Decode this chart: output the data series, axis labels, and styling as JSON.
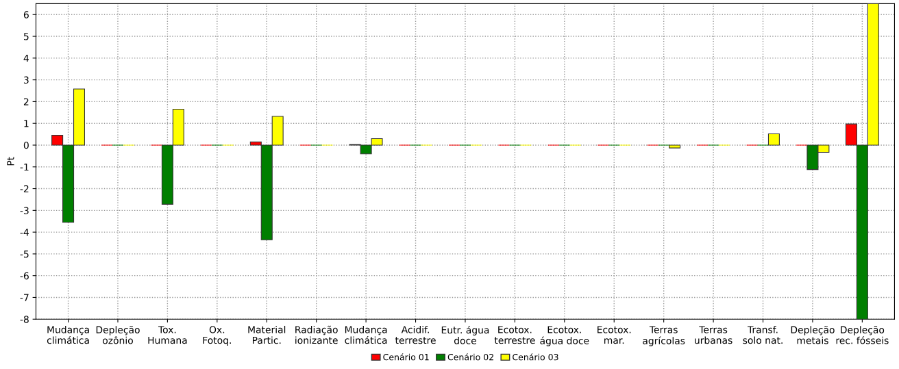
{
  "chart_data": {
    "type": "bar",
    "ylabel": "Pt",
    "categories": [
      "Mudança\nclimática",
      "Depleção\nozônio",
      "Tox.\nHumana",
      "Ox.\nFotoq.",
      "Material\nPartic.",
      "Radiação\nionizante",
      "Mudança\nclimática",
      "Acidif.\nterrestre",
      "Eutr. água\ndoce",
      "Ecotox.\nterrestre",
      "Ecotox.\nágua doce",
      "Ecotox.\nmar.",
      "Terras\nagrícolas",
      "Terras\nurbanas",
      "Transf.\nsolo nat.",
      "Depleção\nmetais",
      "Depleção\nrec. fósseis"
    ],
    "series": [
      {
        "name": "Cenário 01",
        "color": "#ff0000",
        "values": [
          0.45,
          0,
          0,
          0,
          0.15,
          0,
          0.03,
          0,
          0,
          0,
          0,
          0,
          0,
          0,
          0,
          0,
          0.97
        ]
      },
      {
        "name": "Cenário 02",
        "color": "#007f00",
        "values": [
          -3.55,
          0,
          -2.72,
          0,
          -4.35,
          0,
          -0.4,
          0,
          0,
          0,
          0,
          0,
          0,
          0,
          0,
          -1.12,
          -8
        ]
      },
      {
        "name": "Cenário 03",
        "color": "#ffff00",
        "values": [
          2.58,
          0,
          1.65,
          0,
          1.32,
          0,
          0.3,
          0,
          0,
          0,
          0,
          0,
          -0.13,
          0,
          0.52,
          -0.33,
          6.5
        ]
      }
    ],
    "ylim": [
      -8,
      6.5
    ],
    "yticks": [
      -8,
      -7,
      -6,
      -5,
      -4,
      -3,
      -2,
      -1,
      0,
      1,
      2,
      3,
      4,
      5,
      6
    ],
    "grid": true,
    "legend": "bottom"
  }
}
